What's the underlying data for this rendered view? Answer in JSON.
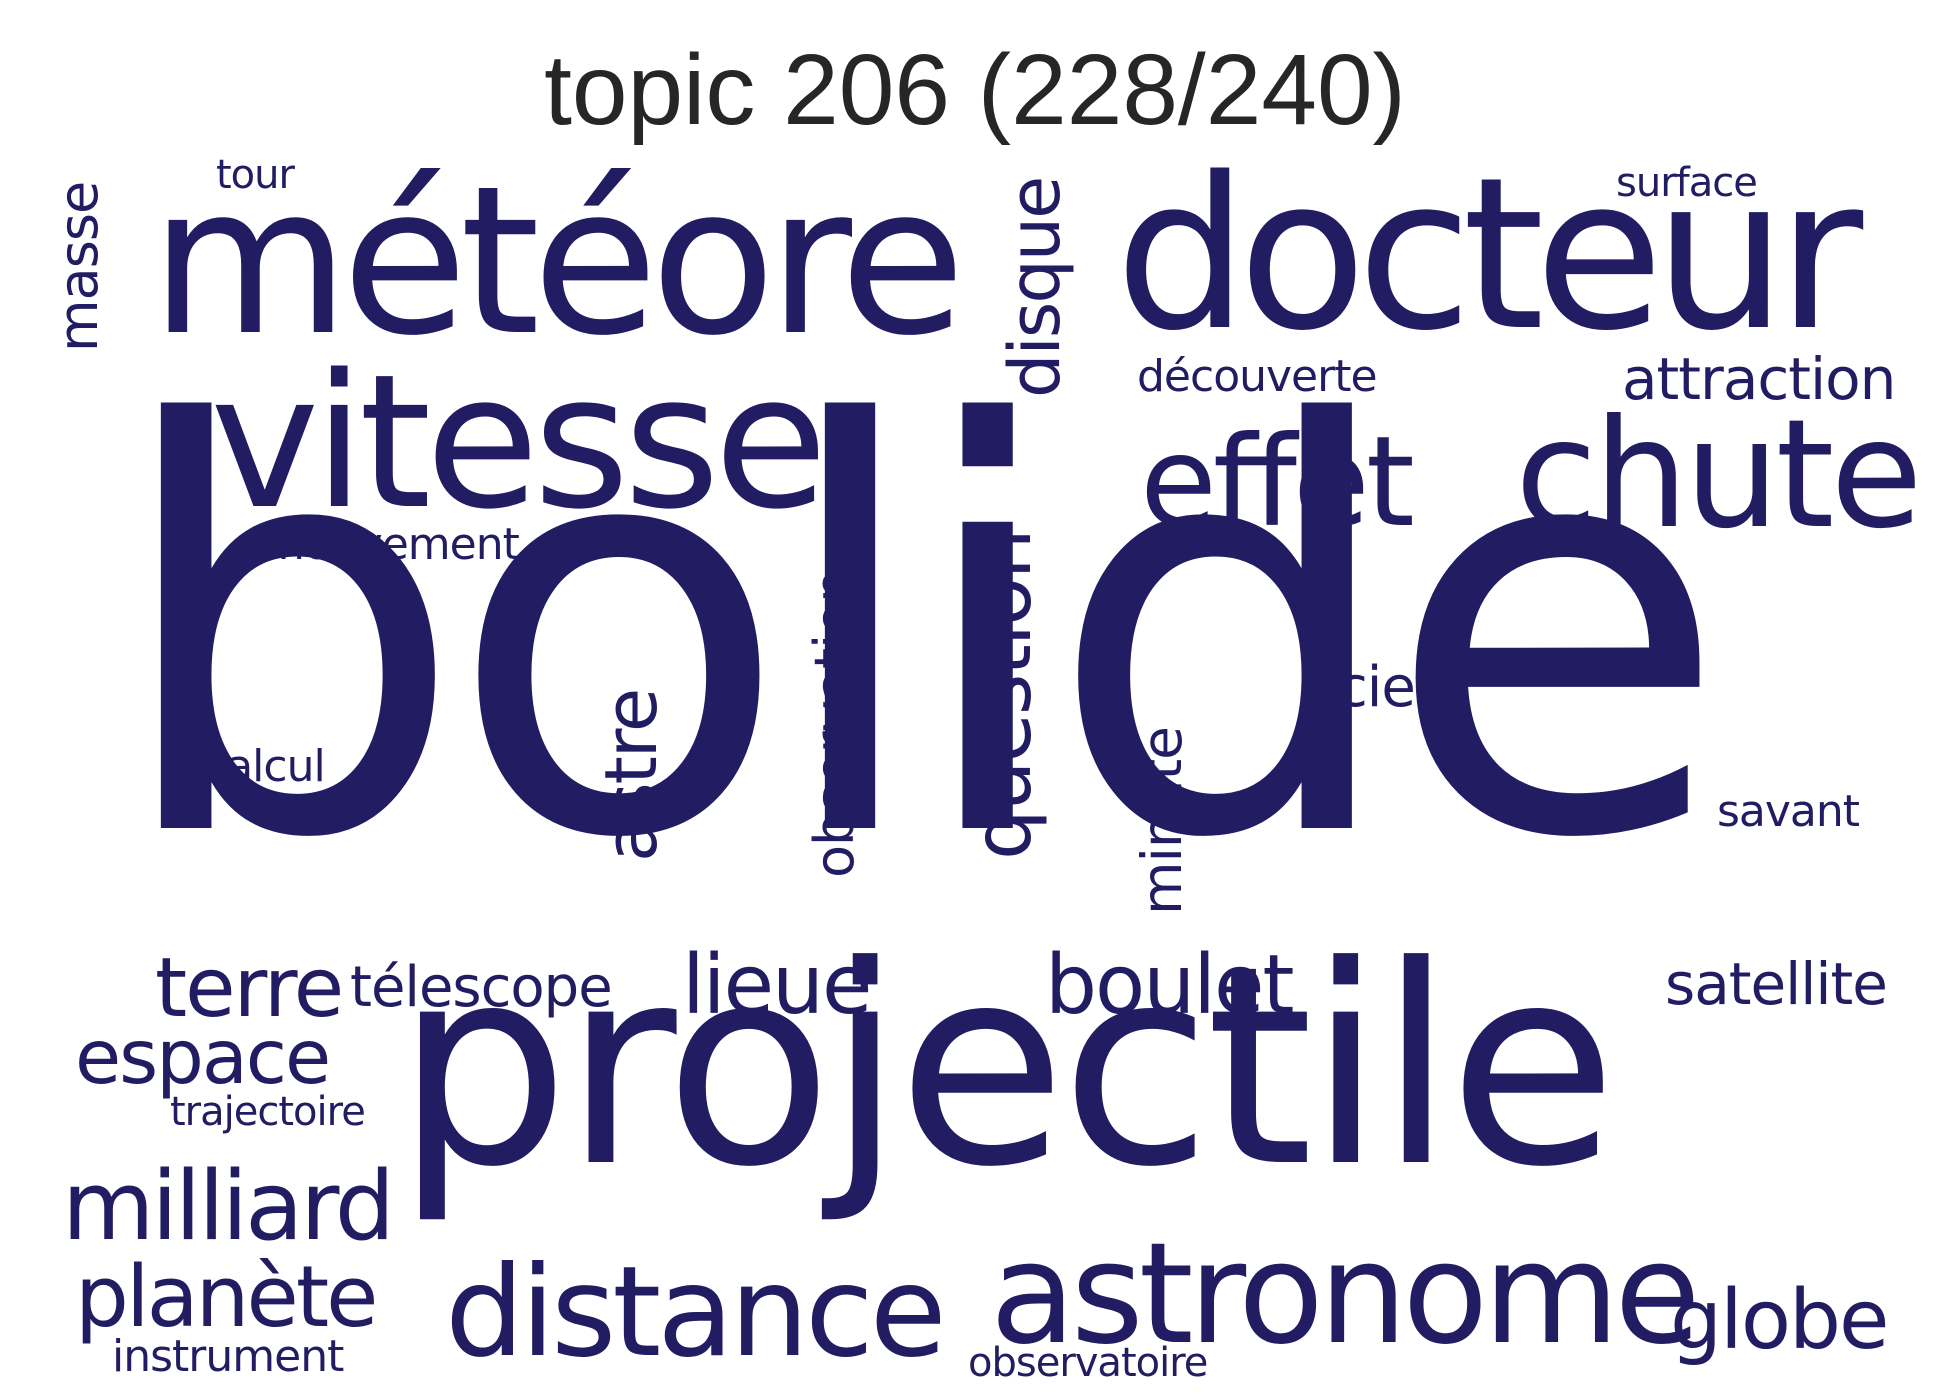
{
  "title": "topic 206 (228/240)",
  "colors": {
    "word": "#221d63",
    "title": "#262626",
    "background": "#ffffff"
  },
  "words": {
    "bolide": "bolide",
    "projectile": "projectile",
    "meteore": "météore",
    "docteur": "docteur",
    "vitesse": "vitesse",
    "chute": "chute",
    "effet": "effet",
    "astronome": "astronome",
    "distance": "distance",
    "milliard": "milliard",
    "planete": "planète",
    "globe": "globe",
    "terre": "terre",
    "espace": "espace",
    "boulet": "boulet",
    "lieue": "lieue",
    "question": "question",
    "disque": "disque",
    "astre": "astre",
    "observation": "observation",
    "attraction": "attraction",
    "satellite": "satellite",
    "telescope": "télescope",
    "masse": "masse",
    "minute": "minute",
    "ciel": "ciel",
    "decouverte": "découverte",
    "mouvement": "mouvement",
    "savant": "savant",
    "calcul": "calcul",
    "instrument": "instrument",
    "trajectoire": "trajectoire",
    "observatoire": "observatoire",
    "surface": "surface",
    "tour": "tour"
  }
}
